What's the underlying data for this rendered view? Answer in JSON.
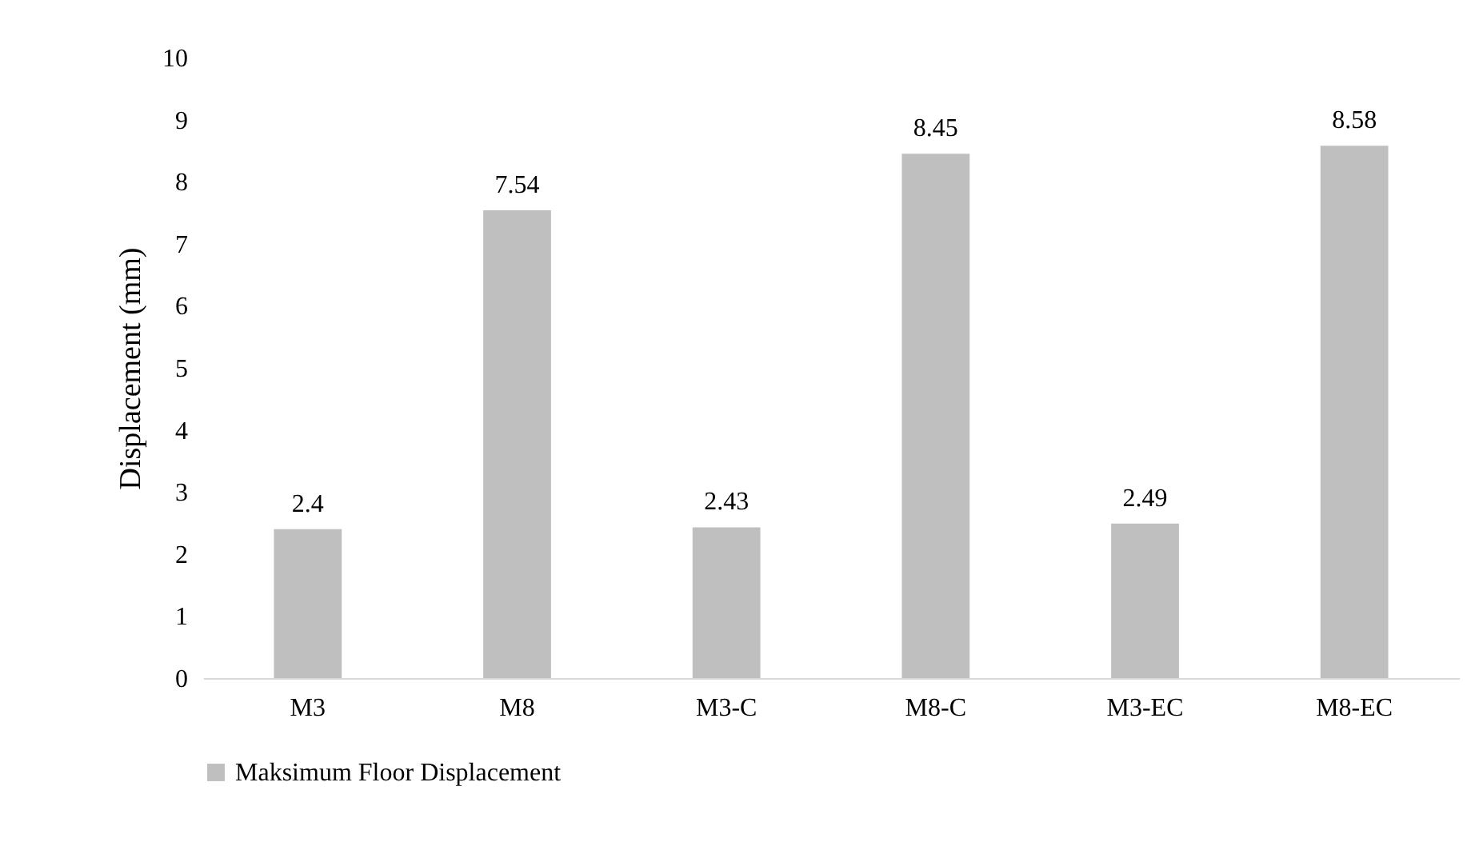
{
  "chart_data": {
    "type": "bar",
    "ylabel": "Displacement (mm)",
    "categories": [
      "M3",
      "M8",
      "M3-C",
      "M8-C",
      "M3-EC",
      "M8-EC"
    ],
    "series": [
      {
        "name": "Maksimum Floor Displacement",
        "color": "#bfbfbf",
        "values": [
          2.4,
          7.54,
          2.43,
          8.45,
          2.49,
          8.58
        ]
      }
    ],
    "ylim": [
      0,
      10
    ],
    "yticks": [
      0,
      1,
      2,
      3,
      4,
      5,
      6,
      7,
      8,
      9,
      10
    ],
    "grid": false,
    "legend": "bottom",
    "data_labels": true
  }
}
